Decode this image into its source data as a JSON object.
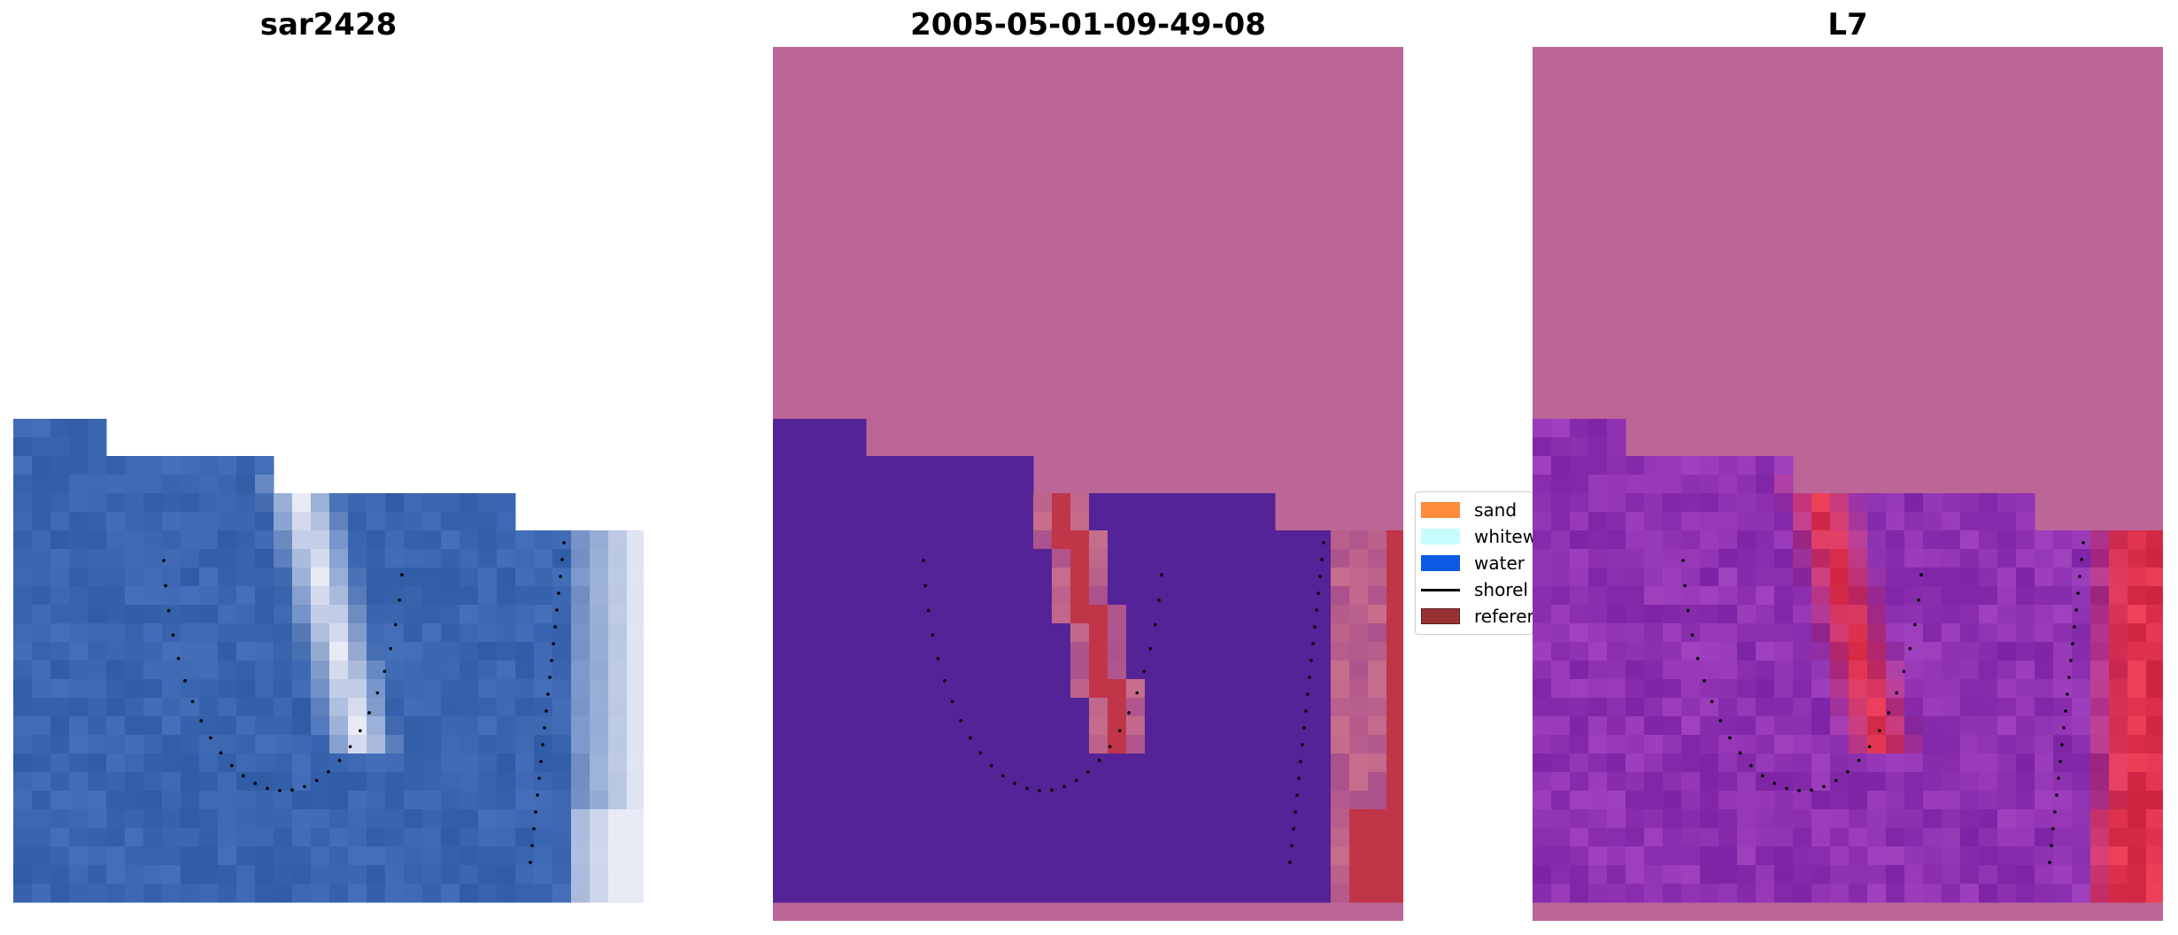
{
  "figure": {
    "panels": [
      {
        "title": "sar2428",
        "kind": "satellite-rgb"
      },
      {
        "title": "2005-05-01-09-49-08",
        "kind": "classification"
      },
      {
        "title": "L7",
        "kind": "probability"
      }
    ],
    "legend": {
      "items": [
        {
          "label": "sand",
          "color": "#ff8c3c",
          "type": "patch"
        },
        {
          "label": "whitew",
          "color": "#c8fcfc",
          "type": "patch"
        },
        {
          "label": "water",
          "color": "#0a5ae6",
          "type": "patch"
        },
        {
          "label": "shorel",
          "color": "#000000",
          "type": "line"
        },
        {
          "label": "referer",
          "color": "#993333",
          "type": "patch"
        }
      ]
    },
    "colors": {
      "nodata_overlay": "#bc6697",
      "water_class": "#552398",
      "shoreline_class": "#c03548",
      "water_rgb": "#2f5ca5",
      "surf_rgb": "#e8eaf6"
    }
  }
}
